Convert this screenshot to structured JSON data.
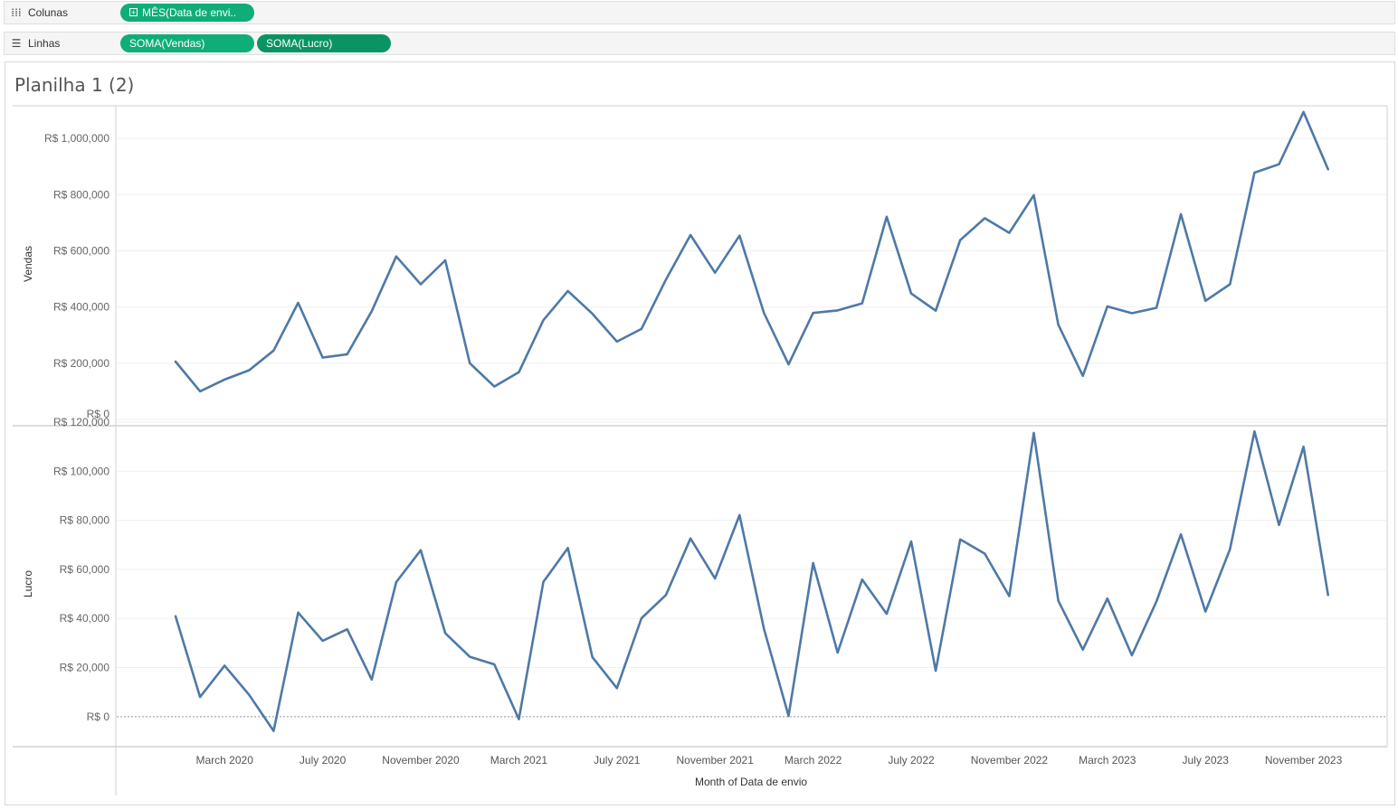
{
  "shelves": {
    "columns": {
      "icon": "columns-icon",
      "label": "Colunas",
      "pills": [
        {
          "label": "MÊS(Data de envi..",
          "has_expand": true
        }
      ]
    },
    "rows": {
      "icon": "rows-icon",
      "label": "Linhas",
      "pills": [
        {
          "label": "SOMA(Vendas)"
        },
        {
          "label": "SOMA(Lucro)"
        }
      ]
    }
  },
  "sheet": {
    "title": "Planilha 1 (2)"
  },
  "colors": {
    "line": "#4e79a7",
    "pill_green": "#0fae78",
    "pill_dark": "#0a9463"
  },
  "chart_data": [
    {
      "type": "line",
      "ylabel": "Vendas",
      "xlabel": "Month of Data de envio",
      "ylim": [
        0,
        1100000
      ],
      "yticks": [
        0,
        200000,
        400000,
        600000,
        800000,
        1000000
      ],
      "ytick_labels": [
        "R$ 0",
        "R$ 200,000",
        "R$ 400,000",
        "R$ 600,000",
        "R$ 800,000",
        "R$ 1,000,000"
      ],
      "grid": true,
      "x": [
        "2020-01",
        "2020-02",
        "2020-03",
        "2020-04",
        "2020-05",
        "2020-06",
        "2020-07",
        "2020-08",
        "2020-09",
        "2020-10",
        "2020-11",
        "2020-12",
        "2021-01",
        "2021-02",
        "2021-03",
        "2021-04",
        "2021-05",
        "2021-06",
        "2021-07",
        "2021-08",
        "2021-09",
        "2021-10",
        "2021-11",
        "2021-12",
        "2022-01",
        "2022-02",
        "2022-03",
        "2022-04",
        "2022-05",
        "2022-06",
        "2022-07",
        "2022-08",
        "2022-09",
        "2022-10",
        "2022-11",
        "2022-12",
        "2023-01",
        "2023-02",
        "2023-03",
        "2023-04",
        "2023-05",
        "2023-06",
        "2023-07",
        "2023-08",
        "2023-09",
        "2023-10",
        "2023-11",
        "2023-12"
      ],
      "series": [
        {
          "values": [
            206000,
            100000,
            142000,
            175000,
            245000,
            415000,
            220000,
            232000,
            385000,
            580000,
            481000,
            566000,
            200000,
            117000,
            168000,
            353000,
            457000,
            376000,
            277000,
            322000,
            498000,
            656000,
            522000,
            654000,
            378000,
            196000,
            379000,
            388000,
            413000,
            721000,
            448000,
            387000,
            638000,
            716000,
            664000,
            798000,
            337000,
            155000,
            402000,
            378000,
            397000,
            730000,
            422000,
            481000,
            878000,
            908000,
            1094000,
            890000
          ]
        }
      ]
    },
    {
      "type": "line",
      "ylabel": "Lucro",
      "ylim": [
        -10000,
        120000
      ],
      "yticks": [
        0,
        20000,
        40000,
        60000,
        80000,
        100000,
        120000
      ],
      "ytick_labels": [
        "R$ 0",
        "R$ 20,000",
        "R$ 40,000",
        "R$ 60,000",
        "R$ 80,000",
        "R$ 100,000",
        "R$ 120,000"
      ],
      "grid": true,
      "x_ticks": [
        "2020-03",
        "2020-07",
        "2020-11",
        "2021-03",
        "2021-07",
        "2021-11",
        "2022-03",
        "2022-07",
        "2022-11",
        "2023-03",
        "2023-07",
        "2023-11"
      ],
      "x_tick_labels": [
        "March 2020",
        "July 2020",
        "November 2020",
        "March 2021",
        "July 2021",
        "November 2021",
        "March 2022",
        "July 2022",
        "November 2022",
        "March 2023",
        "July 2023",
        "November 2023"
      ],
      "series": [
        {
          "values": [
            40900,
            8000,
            20800,
            8900,
            -5800,
            42400,
            30900,
            35600,
            15100,
            54800,
            67800,
            34000,
            24400,
            21300,
            -1000,
            54900,
            68700,
            24200,
            11600,
            40100,
            49600,
            72600,
            56300,
            82100,
            35600,
            300,
            62600,
            26100,
            55900,
            41900,
            71400,
            18700,
            72200,
            66400,
            49100,
            115600,
            47200,
            27300,
            48100,
            25000,
            46900,
            74300,
            42800,
            68200,
            116200,
            78100,
            110000,
            49600
          ]
        }
      ]
    }
  ]
}
